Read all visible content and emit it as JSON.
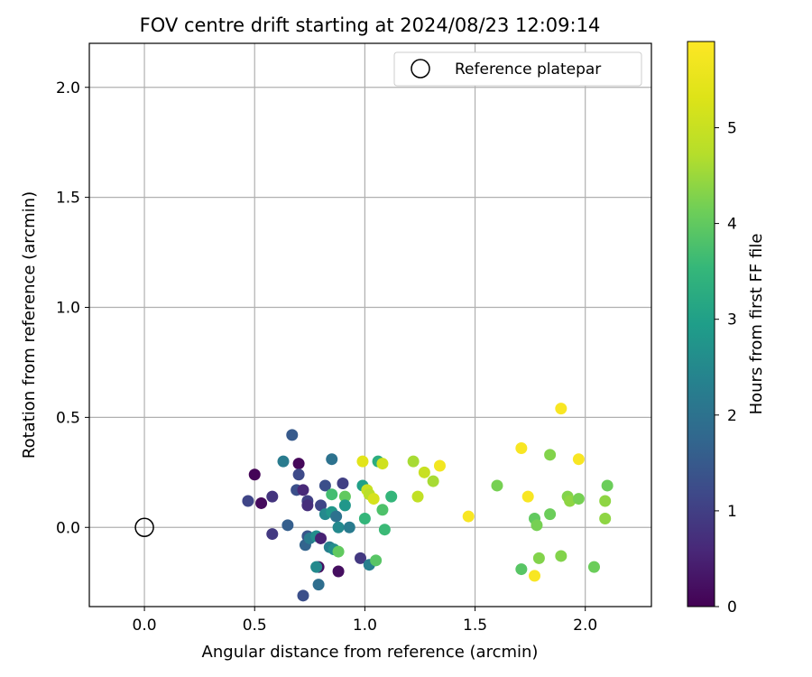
{
  "chart_data": {
    "type": "scatter",
    "title": "FOV centre drift starting at 2024/08/23 12:09:14",
    "xlabel": "Angular distance from reference (arcmin)",
    "ylabel": "Rotation from reference (arcmin)",
    "xlim": [
      -0.25,
      2.3
    ],
    "ylim": [
      -0.36,
      2.2
    ],
    "xticks": [
      0.0,
      0.5,
      1.0,
      1.5,
      2.0
    ],
    "xtick_labels": [
      "0.0",
      "0.5",
      "1.0",
      "1.5",
      "2.0"
    ],
    "yticks": [
      0.0,
      0.5,
      1.0,
      1.5,
      2.0
    ],
    "ytick_labels": [
      "0.0",
      "0.5",
      "1.0",
      "1.5",
      "2.0"
    ],
    "grid": true,
    "legend": {
      "placement": "top-right",
      "entries": [
        "Reference platepar"
      ]
    },
    "reference_point": {
      "label": "Reference platepar",
      "x": 0.0,
      "y": 0.0
    },
    "colorbar": {
      "label": "Hours from first FF file",
      "colormap": "viridis",
      "range": [
        0,
        5.9
      ],
      "ticks": [
        0,
        1,
        2,
        3,
        4,
        5
      ],
      "tick_labels": [
        "0",
        "1",
        "2",
        "3",
        "4",
        "5"
      ]
    },
    "points": [
      {
        "x": 0.5,
        "y": 0.24,
        "hours": 0.05
      },
      {
        "x": 0.53,
        "y": 0.11,
        "hours": 0.15
      },
      {
        "x": 0.47,
        "y": 0.12,
        "hours": 1.1
      },
      {
        "x": 0.58,
        "y": 0.14,
        "hours": 0.8
      },
      {
        "x": 0.58,
        "y": -0.03,
        "hours": 0.9
      },
      {
        "x": 0.63,
        "y": 0.3,
        "hours": 2.2
      },
      {
        "x": 0.67,
        "y": 0.42,
        "hours": 1.5
      },
      {
        "x": 0.7,
        "y": 0.29,
        "hours": 0.1
      },
      {
        "x": 0.7,
        "y": 0.24,
        "hours": 1.2
      },
      {
        "x": 0.65,
        "y": 0.01,
        "hours": 1.6
      },
      {
        "x": 0.69,
        "y": 0.17,
        "hours": 1.3
      },
      {
        "x": 0.72,
        "y": 0.17,
        "hours": 0.6
      },
      {
        "x": 0.74,
        "y": 0.12,
        "hours": 1.0
      },
      {
        "x": 0.74,
        "y": 0.1,
        "hours": 0.7
      },
      {
        "x": 0.73,
        "y": -0.08,
        "hours": 1.7
      },
      {
        "x": 0.74,
        "y": -0.04,
        "hours": 1.4
      },
      {
        "x": 0.75,
        "y": -0.05,
        "hours": 2.2
      },
      {
        "x": 0.72,
        "y": -0.31,
        "hours": 1.3
      },
      {
        "x": 0.78,
        "y": -0.04,
        "hours": 2.6
      },
      {
        "x": 0.79,
        "y": -0.18,
        "hours": 0.2
      },
      {
        "x": 0.78,
        "y": -0.18,
        "hours": 2.5
      },
      {
        "x": 0.79,
        "y": -0.26,
        "hours": 1.9
      },
      {
        "x": 0.8,
        "y": 0.1,
        "hours": 1.1
      },
      {
        "x": 0.8,
        "y": -0.05,
        "hours": 0.5
      },
      {
        "x": 0.82,
        "y": 0.19,
        "hours": 1.3
      },
      {
        "x": 0.82,
        "y": 0.06,
        "hours": 2.5
      },
      {
        "x": 0.84,
        "y": -0.09,
        "hours": 2.3
      },
      {
        "x": 0.85,
        "y": 0.07,
        "hours": 2.8
      },
      {
        "x": 0.85,
        "y": 0.31,
        "hours": 2.0
      },
      {
        "x": 0.85,
        "y": 0.15,
        "hours": 3.7
      },
      {
        "x": 0.86,
        "y": -0.1,
        "hours": 2.6
      },
      {
        "x": 0.87,
        "y": 0.05,
        "hours": 2.0
      },
      {
        "x": 0.88,
        "y": -0.2,
        "hours": 0.2
      },
      {
        "x": 0.88,
        "y": -0.11,
        "hours": 4.0
      },
      {
        "x": 0.88,
        "y": 0.0,
        "hours": 2.5
      },
      {
        "x": 0.9,
        "y": 0.2,
        "hours": 1.0
      },
      {
        "x": 0.91,
        "y": 0.14,
        "hours": 4.0
      },
      {
        "x": 0.91,
        "y": 0.1,
        "hours": 2.8
      },
      {
        "x": 0.93,
        "y": 0.0,
        "hours": 2.2
      },
      {
        "x": 0.98,
        "y": -0.14,
        "hours": 0.9
      },
      {
        "x": 0.99,
        "y": 0.19,
        "hours": 3.0
      },
      {
        "x": 0.99,
        "y": 0.3,
        "hours": 5.4
      },
      {
        "x": 1.0,
        "y": 0.04,
        "hours": 3.5
      },
      {
        "x": 1.01,
        "y": 0.17,
        "hours": 5.0
      },
      {
        "x": 1.02,
        "y": -0.17,
        "hours": 2.3
      },
      {
        "x": 1.02,
        "y": 0.15,
        "hours": 4.8
      },
      {
        "x": 1.04,
        "y": 0.13,
        "hours": 5.2
      },
      {
        "x": 1.05,
        "y": -0.15,
        "hours": 3.9
      },
      {
        "x": 1.06,
        "y": 0.3,
        "hours": 3.3
      },
      {
        "x": 1.08,
        "y": 0.29,
        "hours": 5.1
      },
      {
        "x": 1.08,
        "y": 0.08,
        "hours": 3.8
      },
      {
        "x": 1.09,
        "y": -0.01,
        "hours": 3.6
      },
      {
        "x": 1.12,
        "y": 0.14,
        "hours": 3.5
      },
      {
        "x": 1.22,
        "y": 0.3,
        "hours": 4.6
      },
      {
        "x": 1.24,
        "y": 0.14,
        "hours": 4.9
      },
      {
        "x": 1.27,
        "y": 0.25,
        "hours": 5.0
      },
      {
        "x": 1.31,
        "y": 0.21,
        "hours": 4.6
      },
      {
        "x": 1.34,
        "y": 0.28,
        "hours": 5.7
      },
      {
        "x": 1.47,
        "y": 0.05,
        "hours": 5.8
      },
      {
        "x": 1.6,
        "y": 0.19,
        "hours": 4.2
      },
      {
        "x": 1.71,
        "y": -0.19,
        "hours": 3.9
      },
      {
        "x": 1.71,
        "y": 0.36,
        "hours": 5.8
      },
      {
        "x": 1.74,
        "y": 0.14,
        "hours": 5.8
      },
      {
        "x": 1.77,
        "y": -0.22,
        "hours": 5.8
      },
      {
        "x": 1.77,
        "y": 0.04,
        "hours": 4.0
      },
      {
        "x": 1.78,
        "y": 0.01,
        "hours": 4.2
      },
      {
        "x": 1.79,
        "y": -0.14,
        "hours": 4.3
      },
      {
        "x": 1.84,
        "y": 0.33,
        "hours": 4.3
      },
      {
        "x": 1.84,
        "y": 0.06,
        "hours": 4.1
      },
      {
        "x": 1.89,
        "y": 0.54,
        "hours": 5.8
      },
      {
        "x": 1.89,
        "y": -0.13,
        "hours": 4.3
      },
      {
        "x": 1.92,
        "y": 0.14,
        "hours": 4.3
      },
      {
        "x": 1.93,
        "y": 0.12,
        "hours": 4.4
      },
      {
        "x": 1.97,
        "y": 0.31,
        "hours": 5.8
      },
      {
        "x": 1.97,
        "y": 0.13,
        "hours": 4.2
      },
      {
        "x": 2.04,
        "y": -0.18,
        "hours": 4.1
      },
      {
        "x": 2.09,
        "y": 0.04,
        "hours": 4.4
      },
      {
        "x": 2.09,
        "y": 0.12,
        "hours": 4.4
      },
      {
        "x": 2.1,
        "y": 0.19,
        "hours": 4.1
      }
    ]
  }
}
